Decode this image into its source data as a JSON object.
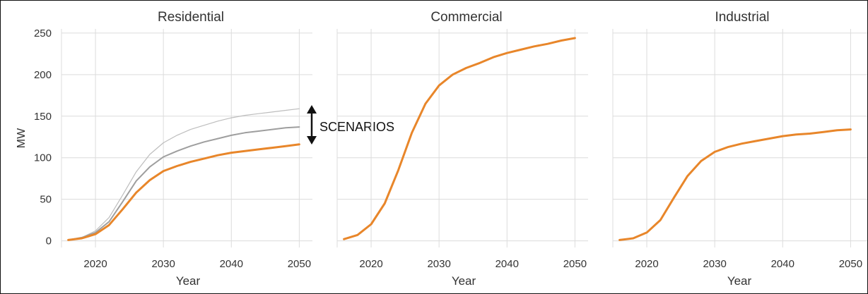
{
  "chart_data": [
    {
      "type": "line",
      "title": "Residential",
      "xlabel": "Year",
      "ylabel": "MW",
      "xlim": [
        2015,
        2051
      ],
      "ylim": [
        -8,
        255
      ],
      "xticks": [
        2020,
        2030,
        2040,
        2050
      ],
      "yticks": [
        0,
        50,
        100,
        150,
        200,
        250
      ],
      "grid": true,
      "annotation": "SCENARIOS",
      "series": [
        {
          "role": "scenario",
          "color": "#bdbdbd",
          "width": 1.2,
          "x": [
            2016,
            2018,
            2020,
            2022,
            2024,
            2026,
            2028,
            2030,
            2032,
            2034,
            2036,
            2038,
            2040,
            2042,
            2044,
            2046,
            2048,
            2050
          ],
          "y": [
            1,
            4,
            12,
            28,
            55,
            83,
            104,
            118,
            127,
            134,
            139,
            144,
            148,
            151,
            153,
            155,
            157,
            159
          ]
        },
        {
          "role": "scenario",
          "color": "#9e9e9e",
          "width": 2,
          "x": [
            2016,
            2018,
            2020,
            2022,
            2024,
            2026,
            2028,
            2030,
            2032,
            2034,
            2036,
            2038,
            2040,
            2042,
            2044,
            2046,
            2048,
            2050
          ],
          "y": [
            1,
            4,
            10,
            23,
            47,
            72,
            89,
            101,
            108,
            114,
            119,
            123,
            127,
            130,
            132,
            134,
            136,
            137
          ]
        },
        {
          "role": "baseline",
          "color": "#e8862a",
          "width": 3,
          "x": [
            2016,
            2018,
            2020,
            2022,
            2024,
            2026,
            2028,
            2030,
            2032,
            2034,
            2036,
            2038,
            2040,
            2042,
            2044,
            2046,
            2048,
            2050
          ],
          "y": [
            1,
            3,
            8,
            19,
            38,
            58,
            73,
            84,
            90,
            95,
            99,
            103,
            106,
            108,
            110,
            112,
            114,
            116
          ]
        }
      ]
    },
    {
      "type": "line",
      "title": "Commercial",
      "xlabel": "Year",
      "ylabel": "",
      "xlim": [
        2015,
        2051
      ],
      "ylim": [
        -8,
        255
      ],
      "xticks": [
        2020,
        2030,
        2040,
        2050
      ],
      "grid": true,
      "series": [
        {
          "role": "baseline",
          "color": "#e8862a",
          "width": 3,
          "x": [
            2016,
            2018,
            2020,
            2022,
            2024,
            2026,
            2028,
            2030,
            2032,
            2034,
            2036,
            2038,
            2040,
            2042,
            2044,
            2046,
            2048,
            2050
          ],
          "y": [
            2,
            7,
            20,
            45,
            85,
            130,
            165,
            187,
            200,
            208,
            214,
            221,
            226,
            230,
            234,
            237,
            241,
            244
          ]
        }
      ]
    },
    {
      "type": "line",
      "title": "Industrial",
      "xlabel": "Year",
      "ylabel": "",
      "xlim": [
        2015,
        2051
      ],
      "ylim": [
        -8,
        255
      ],
      "xticks": [
        2020,
        2030,
        2040,
        2050
      ],
      "grid": true,
      "series": [
        {
          "role": "baseline",
          "color": "#e8862a",
          "width": 3,
          "x": [
            2016,
            2018,
            2020,
            2022,
            2024,
            2026,
            2028,
            2030,
            2032,
            2034,
            2036,
            2038,
            2040,
            2042,
            2044,
            2046,
            2048,
            2050
          ],
          "y": [
            1,
            3,
            10,
            25,
            52,
            78,
            96,
            107,
            113,
            117,
            120,
            123,
            126,
            128,
            129,
            131,
            133,
            134
          ]
        }
      ]
    }
  ]
}
